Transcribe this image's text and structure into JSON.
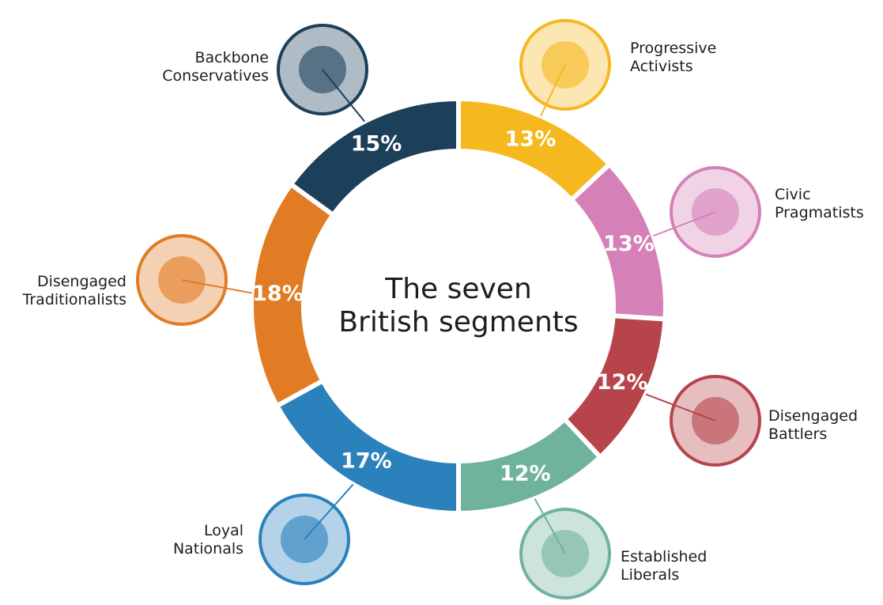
{
  "chart_data": {
    "type": "donut",
    "title": "The seven\nBritish segments",
    "categories": [
      "Progressive Activists",
      "Civic Pragmatists",
      "Disengaged Battlers",
      "Established Liberals",
      "Loyal Nationals",
      "Disengaged Traditionalists",
      "Backbone Conservatives"
    ],
    "values": [
      13,
      13,
      12,
      12,
      17,
      18,
      15
    ],
    "value_labels": [
      "13%",
      "13%",
      "12%",
      "12%",
      "17%",
      "18%",
      "15%"
    ],
    "colors": [
      "#f5b81f",
      "#d680b8",
      "#b7444b",
      "#6fb29d",
      "#2a81bc",
      "#e17c25",
      "#1c3f5a"
    ]
  }
}
